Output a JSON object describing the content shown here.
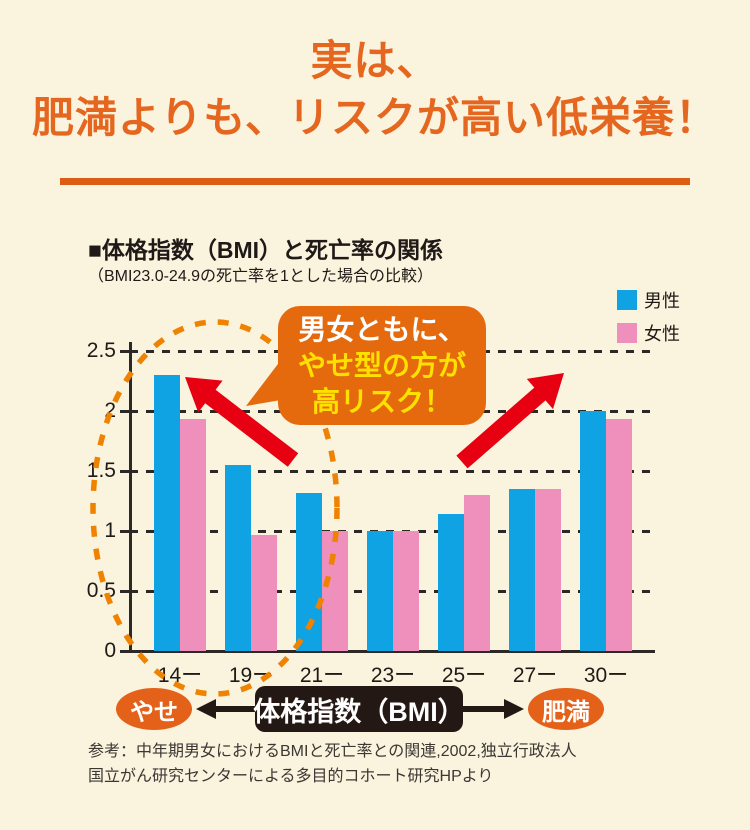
{
  "header": {
    "title_line1": "実は、",
    "title_line2": "肥満よりも、リスクが高い低栄養！"
  },
  "annotation": {
    "line1": "男女ともに、",
    "line2": "やせ型の方が",
    "line3": "高リスク！"
  },
  "axis_footer": {
    "left_label": "やせ",
    "center_label": "体格指数（BMI）",
    "right_label": "肥満"
  },
  "reference": {
    "line1": "参考：中年期男女におけるBMIと死亡率との関連,2002,独立行政法人",
    "line2": "国立がん研究センターによる多目的コホート研究HPより"
  },
  "colors": {
    "background": "#FAF3DE",
    "title_orange": "#E4661F",
    "divider_orange": "#DB5C12",
    "bubble_orange": "#E56A0E",
    "bubble_yellow": "#FFE100",
    "arrow_red": "#E60012",
    "ellipse_orange": "#EF8200",
    "badge_orange": "#E4611A",
    "pill_black": "#231814",
    "text_black": "#1F1A17",
    "grid_black": "#2B2826",
    "reference_gray": "#3B3733"
  },
  "chart_data": {
    "type": "bar",
    "title": "■体格指数（BMI）と死亡率の関係",
    "subtitle": "（BMI23.0-24.9の死亡率を1とした場合の比較）",
    "categories": [
      "14ー",
      "19ー",
      "21ー",
      "23ー",
      "25ー",
      "27ー",
      "30ー"
    ],
    "series": [
      {
        "name": "男性",
        "color": "#0FA3E4",
        "values": [
          2.3,
          1.55,
          1.32,
          1.0,
          1.14,
          1.35,
          2.0
        ]
      },
      {
        "name": "女性",
        "color": "#EF8FBC",
        "values": [
          1.93,
          0.97,
          1.0,
          1.0,
          1.3,
          1.35,
          1.93
        ]
      }
    ],
    "xlabel": "体格指数（BMI）",
    "ylabel": "",
    "ylim": [
      0,
      2.5
    ],
    "yticks": [
      0,
      0.5,
      1,
      1.5,
      2,
      2.5
    ],
    "grid": "dashed-horizontal",
    "legend_position": "top-right"
  }
}
